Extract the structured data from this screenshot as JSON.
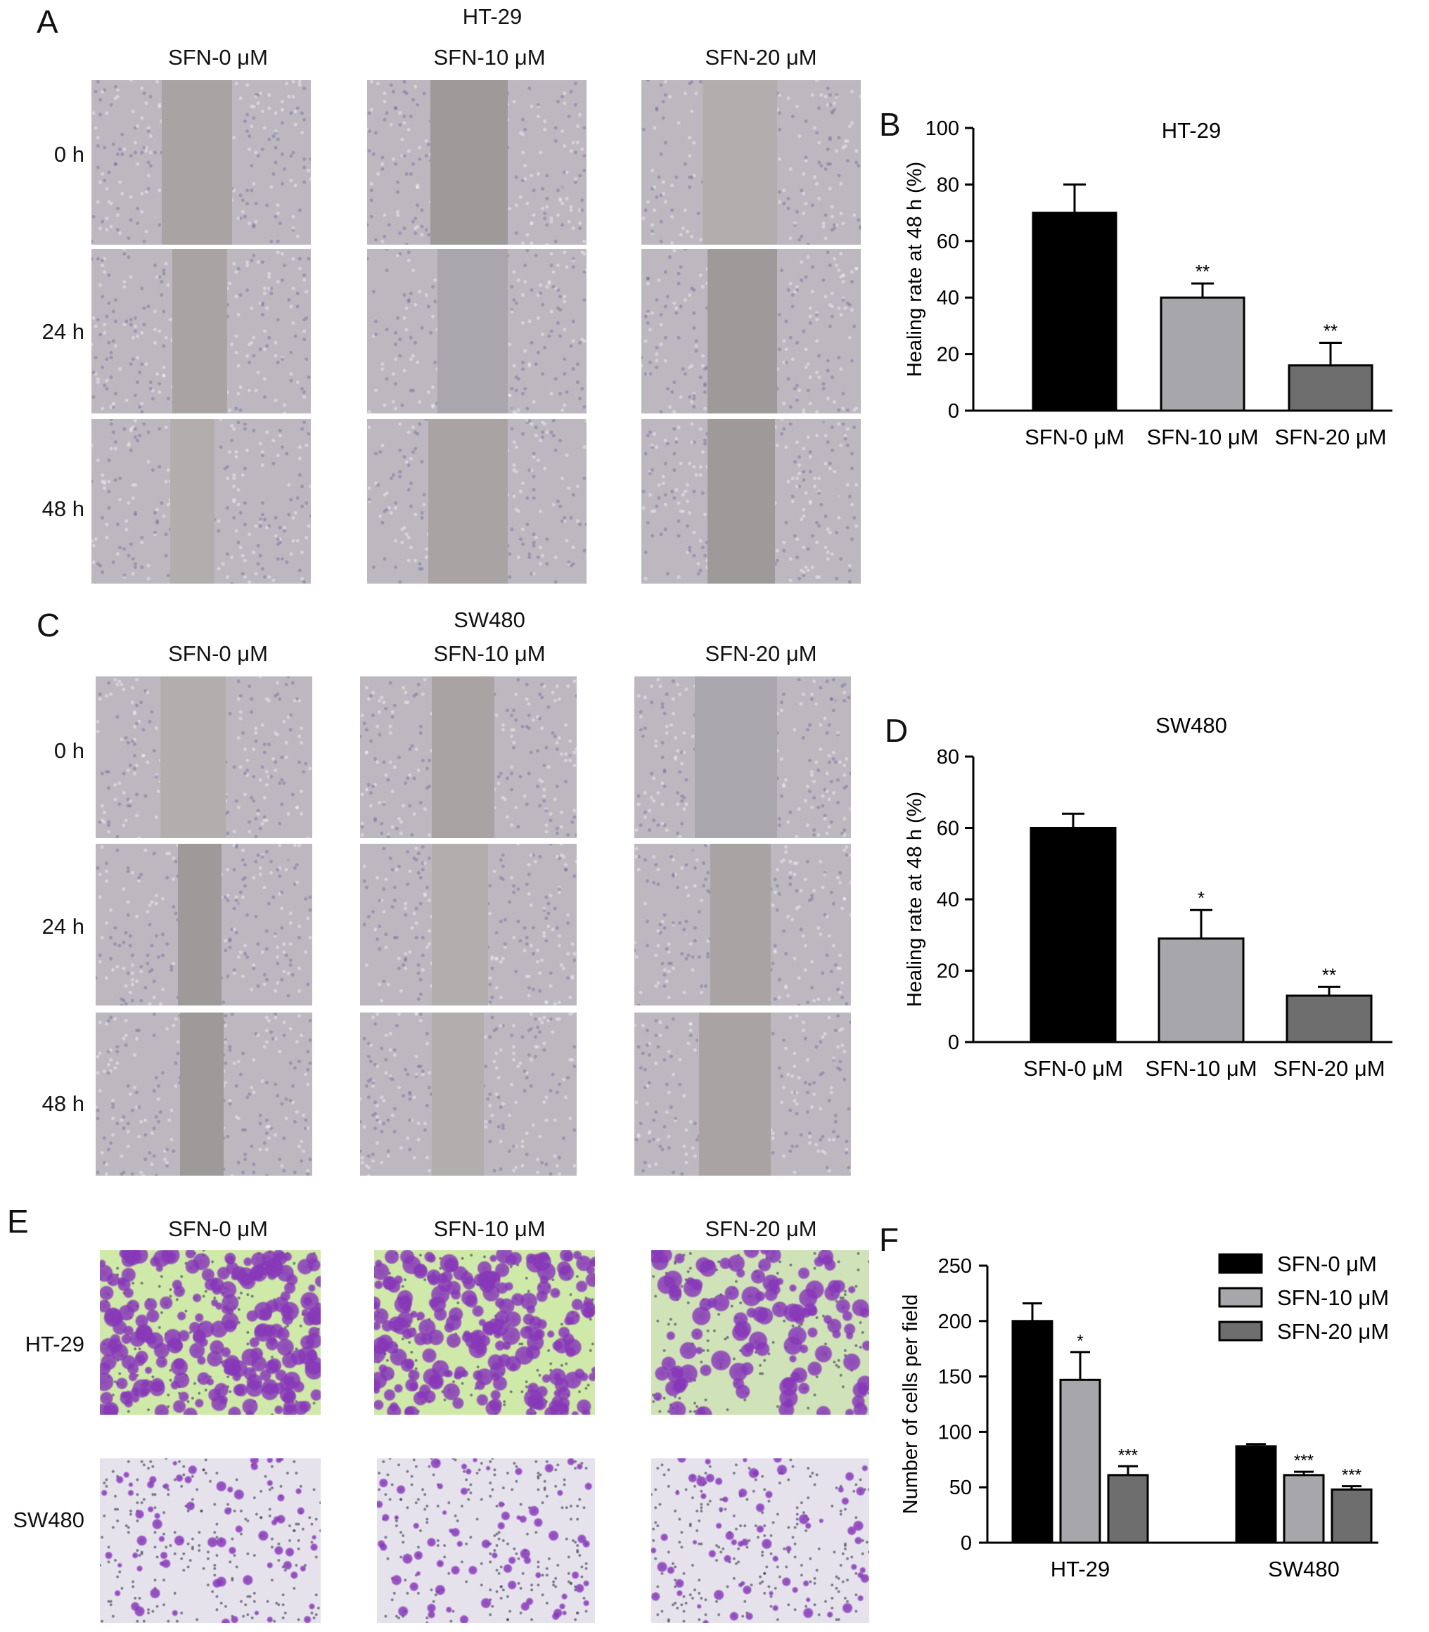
{
  "panels": {
    "A": {
      "letter": "A",
      "cell_line": "HT-29",
      "columns": [
        "SFN-0 μM",
        "SFN-10 μM",
        "SFN-20 μM"
      ],
      "rows": [
        "0 h",
        "24 h",
        "48 h"
      ]
    },
    "C": {
      "letter": "C",
      "cell_line": "SW480",
      "columns": [
        "SFN-0 μM",
        "SFN-10 μM",
        "SFN-20 μM"
      ],
      "rows": [
        "0 h",
        "24 h",
        "48 h"
      ]
    },
    "E": {
      "letter": "E",
      "columns": [
        "SFN-0 μM",
        "SFN-10 μM",
        "SFN-20 μM"
      ],
      "rows": [
        "HT-29",
        "SW480"
      ]
    }
  },
  "colors": {
    "bar_0": "#000000",
    "bar_10": "#a6a6ab",
    "bar_20": "#6e6e6e",
    "wound_bg": "#b7b2b3",
    "crystal_violet": "#8e3fc0"
  },
  "chart_data": [
    {
      "panel": "B",
      "type": "bar",
      "title": "HT-29",
      "ylabel": "Healing rate at 48 h (%)",
      "xlabel": "",
      "ylim": [
        0,
        100
      ],
      "yticks": [
        0,
        20,
        40,
        60,
        80,
        100
      ],
      "categories": [
        "SFN-0 μM",
        "SFN-10 μM",
        "SFN-20 μM"
      ],
      "values": [
        70,
        40,
        16
      ],
      "errors": [
        10,
        5,
        8
      ],
      "annotations": [
        "",
        "**",
        "**"
      ],
      "grid": false
    },
    {
      "panel": "D",
      "type": "bar",
      "title": "SW480",
      "ylabel": "Healing rate at 48 h (%)",
      "xlabel": "",
      "ylim": [
        0,
        80
      ],
      "yticks": [
        0,
        20,
        40,
        60,
        80
      ],
      "categories": [
        "SFN-0 μM",
        "SFN-10 μM",
        "SFN-20 μM"
      ],
      "values": [
        60,
        29,
        13
      ],
      "errors": [
        4,
        8,
        2.5
      ],
      "annotations": [
        "",
        "*",
        "**"
      ],
      "grid": false
    },
    {
      "panel": "F",
      "type": "bar",
      "title": "",
      "ylabel": "Number of cells per field",
      "xlabel": "",
      "ylim": [
        0,
        250
      ],
      "yticks": [
        0,
        50,
        100,
        150,
        200,
        250
      ],
      "categories": [
        "HT-29",
        "SW480"
      ],
      "series": [
        {
          "name": "SFN-0 μM",
          "values": [
            200,
            87
          ],
          "errors": [
            16,
            2
          ],
          "annotations": [
            "",
            ""
          ]
        },
        {
          "name": "SFN-10 μM",
          "values": [
            147,
            61
          ],
          "errors": [
            25,
            3
          ],
          "annotations": [
            "*",
            "***"
          ]
        },
        {
          "name": "SFN-20 μM",
          "values": [
            61,
            48
          ],
          "errors": [
            8,
            3
          ],
          "annotations": [
            "***",
            "***"
          ]
        }
      ],
      "legend": "top-right",
      "grid": false
    }
  ]
}
